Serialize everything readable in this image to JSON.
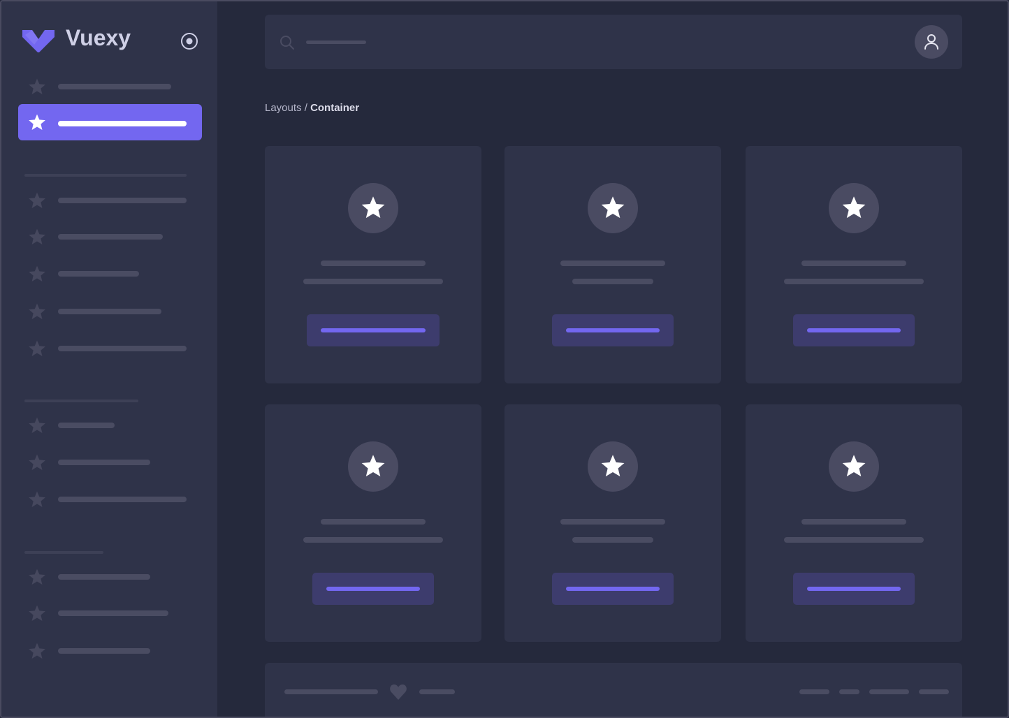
{
  "app": {
    "name": "Vuexy"
  },
  "breadcrumb": {
    "parent": "Layouts",
    "separator": " / ",
    "current": "Container"
  },
  "icons": {
    "logo": "vuexy-logo",
    "toggle": "radio-circle-icon",
    "nav": "star-icon",
    "search": "search-icon",
    "user": "user-icon",
    "footer": "heart-icon"
  },
  "colors": {
    "accent": "#7367f0",
    "background": "#25293c",
    "surface": "#2f3349",
    "placeholder": "#4a4c62"
  }
}
